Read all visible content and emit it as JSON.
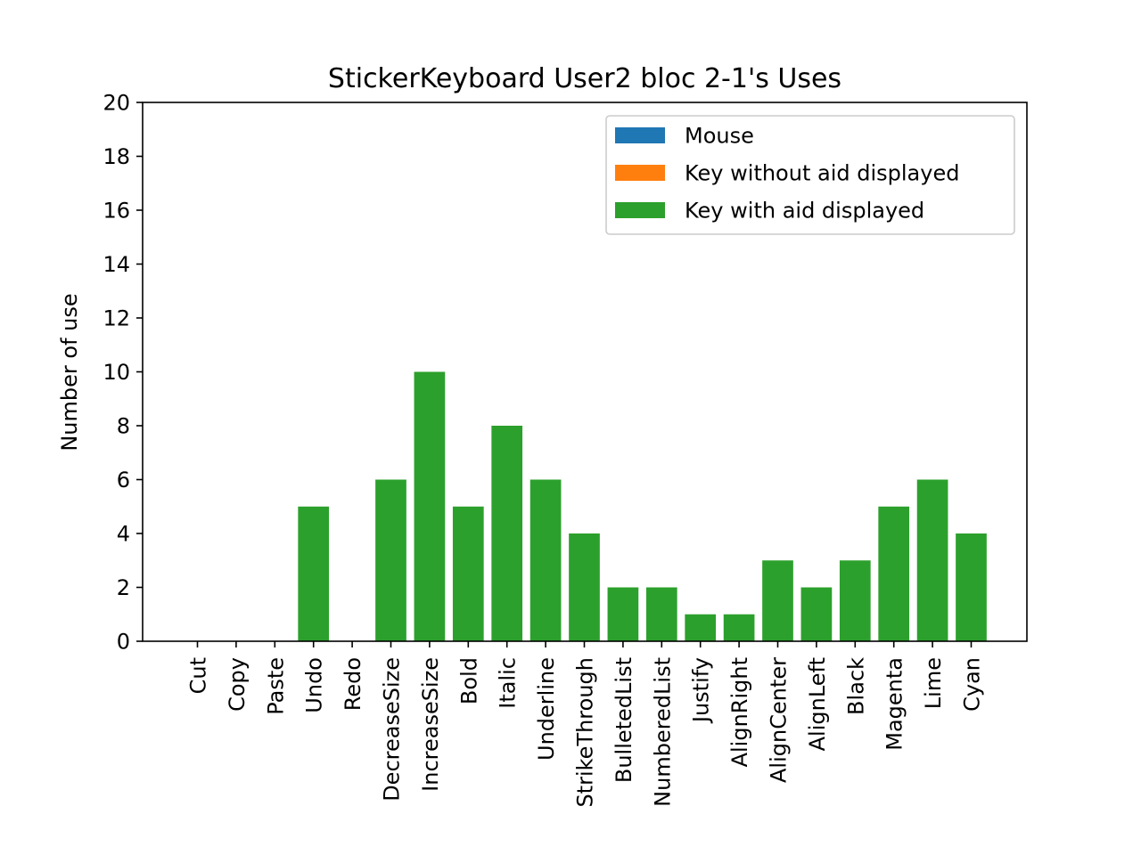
{
  "chart_data": {
    "type": "bar",
    "title": "StickerKeyboard User2 bloc 2-1's Uses",
    "xlabel": "",
    "ylabel": "Number of use",
    "ylim": [
      0,
      20
    ],
    "yticks": [
      0,
      2,
      4,
      6,
      8,
      10,
      12,
      14,
      16,
      18,
      20
    ],
    "stacked": true,
    "grid": false,
    "legend_position": "top-right",
    "categories": [
      "Cut",
      "Copy",
      "Paste",
      "Undo",
      "Redo",
      "DecreaseSize",
      "IncreaseSize",
      "Bold",
      "Italic",
      "Underline",
      "StrikeThrough",
      "BulletedList",
      "NumberedList",
      "Justify",
      "AlignRight",
      "AlignCenter",
      "AlignLeft",
      "Black",
      "Magenta",
      "Lime",
      "Cyan"
    ],
    "series": [
      {
        "name": "Mouse",
        "color": "#1f77b4",
        "values": [
          0,
          0,
          0,
          0,
          0,
          0,
          0,
          0,
          0,
          0,
          0,
          0,
          0,
          0,
          0,
          0,
          0,
          0,
          0,
          0,
          0
        ]
      },
      {
        "name": "Key without aid displayed",
        "color": "#ff7f0e",
        "values": [
          0,
          0,
          0,
          0,
          0,
          0,
          0,
          0,
          0,
          0,
          0,
          0,
          0,
          0,
          0,
          0,
          0,
          0,
          0,
          0,
          0
        ]
      },
      {
        "name": "Key with aid displayed",
        "color": "#2ca02c",
        "values": [
          0,
          0,
          0,
          5,
          0,
          6,
          10,
          5,
          8,
          6,
          4,
          2,
          2,
          1,
          1,
          3,
          2,
          3,
          5,
          6,
          4
        ]
      }
    ]
  }
}
